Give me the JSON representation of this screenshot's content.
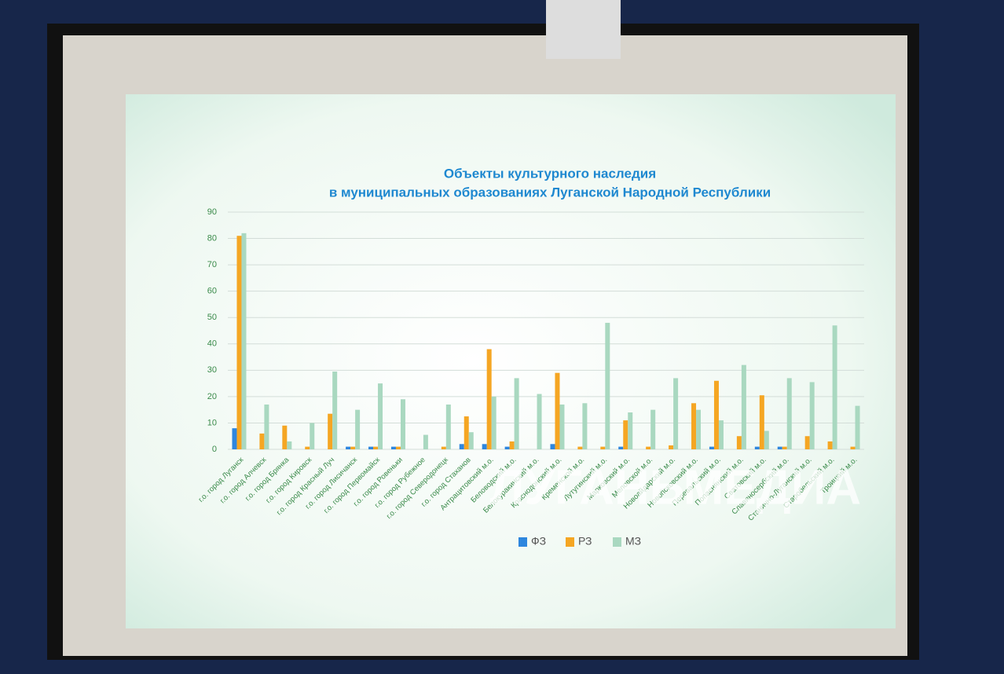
{
  "chart_data": {
    "type": "bar",
    "title": "Объекты культурного наследия",
    "subtitle": "в муниципальных образованиях Луганской Народной Республики",
    "watermark": "ЛУГАНЬМЕДИА",
    "categories": [
      "г.о. город Луганск",
      "г.о. город Алчевск",
      "г.о. город Брянка",
      "г.о. город Кировск",
      "г.о. город Красный Луч",
      "г.о. город Лисичанск",
      "г.о. город Первомайск",
      "г.о. город Ровеньки",
      "г.о. город Рубежное",
      "г.о. город Северодонецк",
      "г.о. город Стаханов",
      "Антрацитовский м.о.",
      "Беловодский м.о.",
      "Белокуракинский м.о.",
      "Краснодонский м.о.",
      "Кременской м.о.",
      "Лутугинский м.о.",
      "Марковский м.о.",
      "Меловской м.о.",
      "Новоайдарский м.о.",
      "Новопсковский м.о.",
      "Перевальский м.о.",
      "Попаснянский м.о.",
      "Сватовский м.о.",
      "Славяносербский м.о.",
      "Станично-Луганский м.о.",
      "Старобельский м.о.",
      "Троицкий м.о."
    ],
    "series": [
      {
        "name": "ФЗ",
        "color": "#2e86de",
        "values": [
          8,
          0,
          0,
          0,
          0,
          1,
          1,
          1,
          0,
          0,
          2,
          2,
          1,
          0,
          2,
          0,
          0,
          1,
          0,
          0,
          0,
          1,
          0,
          1,
          1,
          0,
          0,
          0
        ]
      },
      {
        "name": "РЗ",
        "color": "#f5a623",
        "values": [
          81,
          6,
          9,
          1,
          13.5,
          1,
          1,
          1,
          0,
          1,
          12.5,
          38,
          3,
          0,
          29,
          1,
          1,
          11,
          1,
          1.5,
          17.5,
          26,
          5,
          20.5,
          1,
          5,
          3,
          1
        ]
      },
      {
        "name": "МЗ",
        "color": "#a9d8c0",
        "values": [
          82,
          17,
          3,
          10,
          29.5,
          15,
          25,
          19,
          5.5,
          17,
          6.5,
          20,
          27,
          21,
          17,
          17.5,
          48,
          14,
          15,
          27,
          15,
          11,
          32,
          7,
          27,
          25.5,
          47,
          16.5
        ]
      }
    ],
    "ylim": [
      0,
      90
    ],
    "yticks": [
      0,
      10,
      20,
      30,
      40,
      50,
      60,
      70,
      80,
      90
    ],
    "grid": true,
    "legend": "bottom"
  }
}
